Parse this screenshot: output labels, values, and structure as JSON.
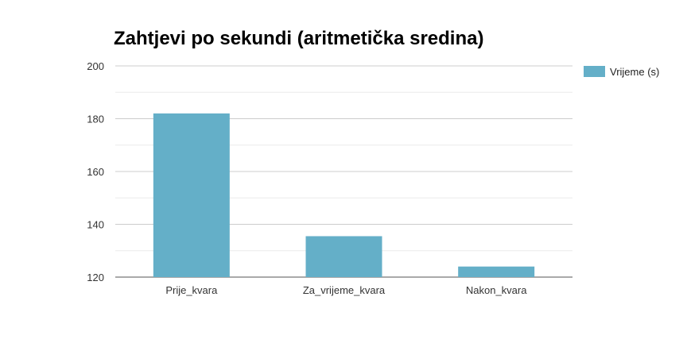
{
  "chart_data": {
    "type": "bar",
    "title": "Zahtjevi po sekundi (aritmetička sredina)",
    "categories": [
      "Prije_kvara",
      "Za_vrijeme_kvara",
      "Nakon_kvara"
    ],
    "series": [
      {
        "name": "Vrijeme (s)",
        "values": [
          182,
          135.5,
          124
        ],
        "color": "#64afc8"
      }
    ],
    "ylim": [
      120,
      200
    ],
    "yticks": [
      "120",
      "140",
      "160",
      "180",
      "200"
    ],
    "grid": true,
    "legend_position": "top-right"
  }
}
